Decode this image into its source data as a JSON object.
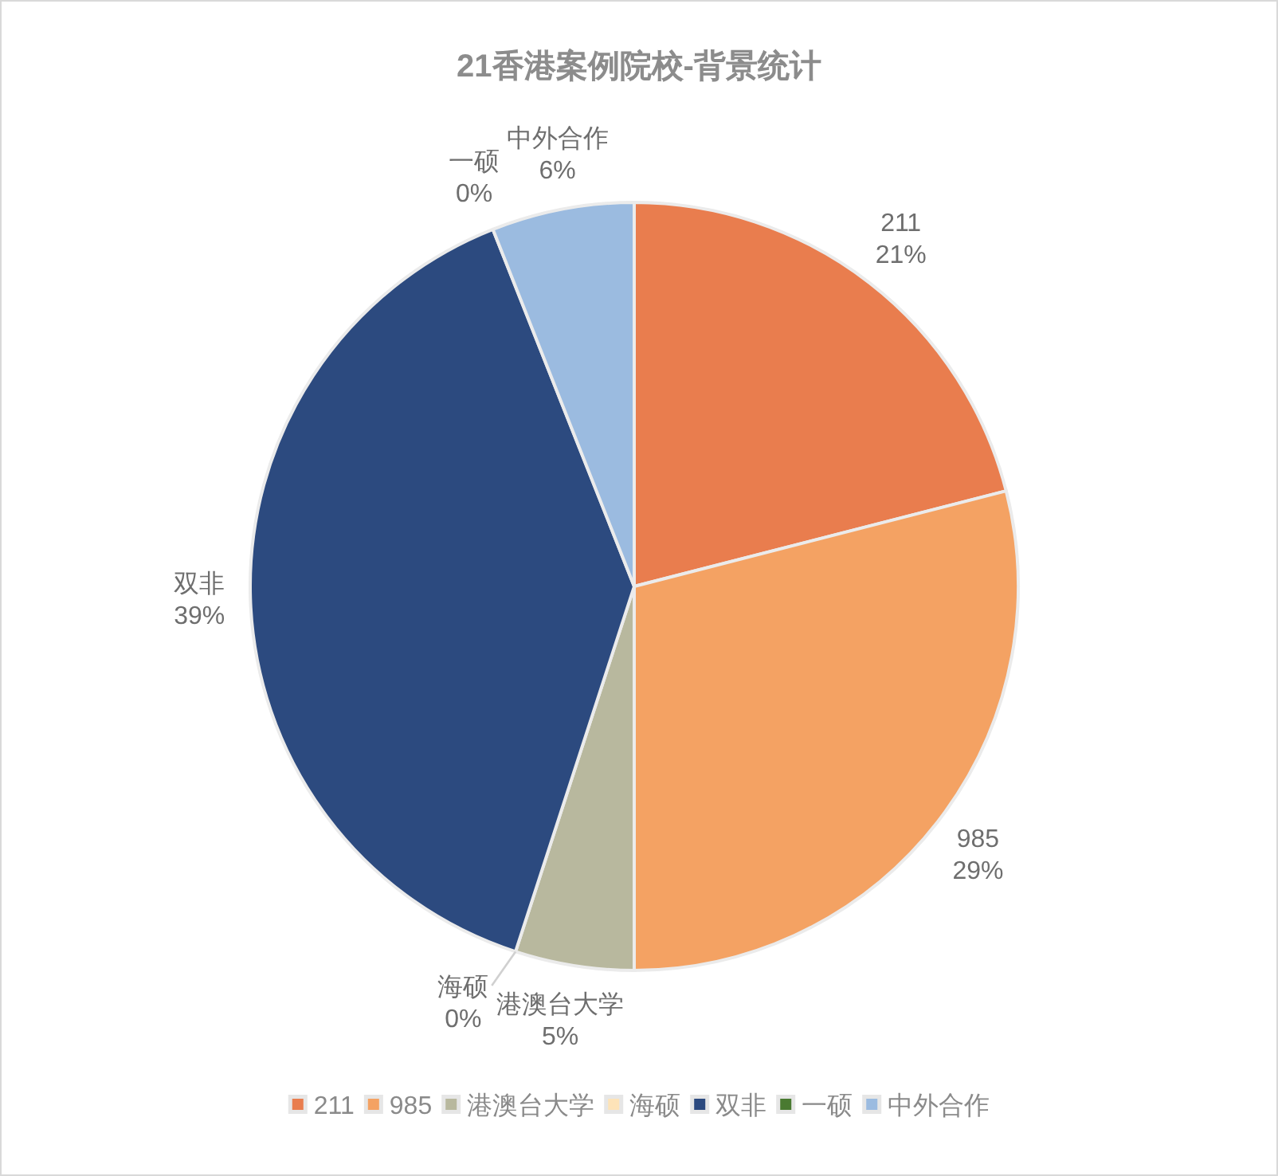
{
  "chart_data": {
    "type": "pie",
    "title": "21香港案例院校-背景统计",
    "categories": [
      "211",
      "985",
      "港澳台大学",
      "海硕",
      "双非",
      "一硕",
      "中外合作"
    ],
    "values": [
      21,
      29,
      5,
      0,
      39,
      0,
      6
    ],
    "colors": [
      "#e97d4e",
      "#f4a263",
      "#b8b89e",
      "#fde3b8",
      "#2c4a7f",
      "#4a7a31",
      "#9bbbe0"
    ],
    "value_labels": [
      "21%",
      "29%",
      "5%",
      "0%",
      "39%",
      "0%",
      "6%"
    ],
    "legend": "bottom"
  }
}
